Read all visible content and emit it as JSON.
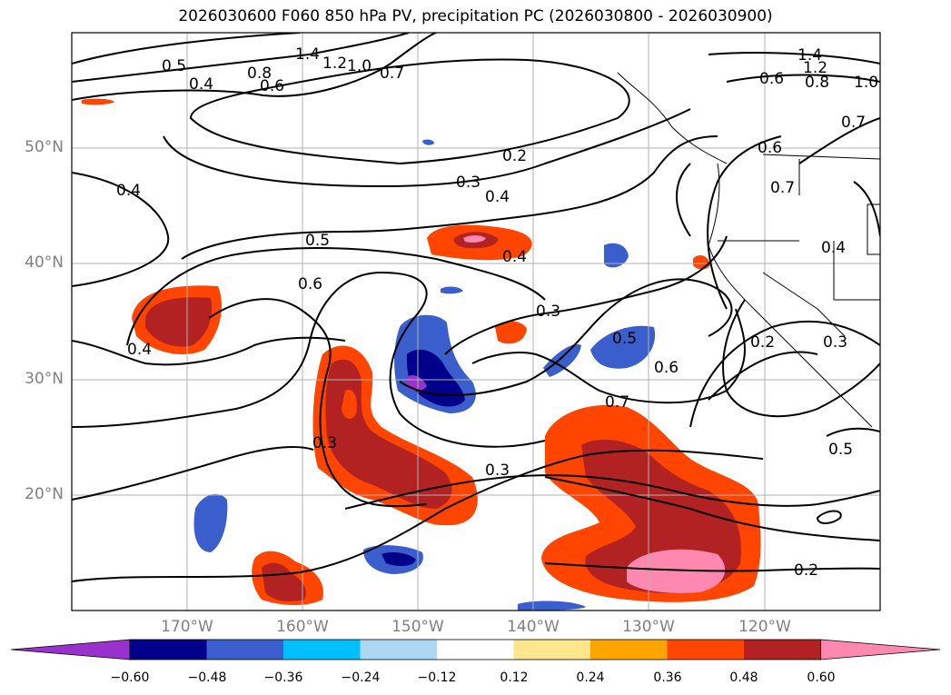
{
  "title": "2026030600 F060 850 hPa PV, precipitation PC (2026030800 - 2026030900)",
  "lat_ticks": [
    "50°N",
    "40°N",
    "30°N",
    "20°N"
  ],
  "lon_ticks": [
    "170°W",
    "160°W",
    "150°W",
    "140°W",
    "130°W",
    "120°W"
  ],
  "contour_labels": [
    "0.5",
    "0.4",
    "0.8",
    "0.6",
    "1.4",
    "1.2",
    "1.0",
    "0.7",
    "1.4",
    "1.2",
    "0.6",
    "0.8",
    "1.0",
    "0.7",
    "0.2",
    "0.3",
    "0.4",
    "0.4",
    "0.6",
    "0.7",
    "0.5",
    "0.4",
    "0.6",
    "0.4",
    "0.3",
    "0.5",
    "0.6",
    "0.7",
    "0.4",
    "0.2",
    "0.3",
    "0.3",
    "0.3",
    "0.5",
    "0.2"
  ],
  "colorbar": {
    "ticks": [
      "−0.60",
      "−0.48",
      "−0.36",
      "−0.24",
      "−0.12",
      "0.12",
      "0.24",
      "0.36",
      "0.48",
      "0.60"
    ],
    "colors": [
      "#9932cc",
      "#00008b",
      "#3a5fcd",
      "#00bfff",
      "#add8f5",
      "#ffffff",
      "#ffe68c",
      "#ffa500",
      "#ff4500",
      "#b22222",
      "#ff88b0"
    ]
  }
}
